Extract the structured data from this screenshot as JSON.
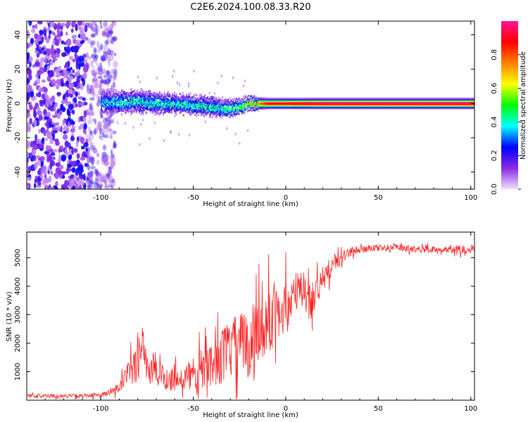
{
  "figure": {
    "title": "C2E6.2024.100.08.33.R20"
  },
  "chart_data": [
    {
      "type": "heatmap",
      "name": "spectrogram",
      "xlabel": "Height of straight line (km)",
      "ylabel": "Frequency (Hz)",
      "xlim": [
        -140,
        102
      ],
      "ylim": [
        -50,
        48
      ],
      "xticks": [
        -100,
        -50,
        0,
        50,
        100
      ],
      "yticks": [
        -40,
        -20,
        0,
        20,
        40
      ],
      "colorbar": {
        "label": "Normalized spectral amplitude",
        "range": [
          0,
          1
        ],
        "ticks": [
          0.0,
          0.2,
          0.4,
          0.6,
          0.8
        ],
        "colormap": [
          "#f0e0ff",
          "#8a2be2",
          "#0000ff",
          "#00ffff",
          "#00ff00",
          "#ffff00",
          "#ff8000",
          "#ff0000",
          "#ff1493"
        ]
      },
      "description_points": {
        "noise_region_x": [
          -140,
          -100
        ],
        "signal_start_x": -100,
        "tone_frequency_hz": 0,
        "tone_band_hz_by_x": {
          "x": [
            -100,
            -80,
            -60,
            -40,
            -30,
            -20,
            -10,
            0,
            10,
            20,
            50,
            100
          ],
          "halfwidth": [
            6,
            6,
            5,
            5,
            4,
            3,
            2,
            2,
            2,
            2,
            2,
            2
          ],
          "center": [
            1,
            1,
            0,
            -2,
            -3,
            0,
            0,
            0,
            0,
            0,
            0,
            0
          ],
          "peak_amplitude": [
            0.35,
            0.4,
            0.4,
            0.4,
            0.45,
            0.6,
            0.9,
            0.9,
            0.95,
            1.0,
            1.0,
            1.0
          ]
        }
      }
    },
    {
      "type": "line",
      "name": "snr",
      "xlabel": "Height of straight line (km)",
      "ylabel": "SNR (10 * v/v)",
      "xlim": [
        -140,
        102
      ],
      "ylim": [
        0,
        5900
      ],
      "xticks": [
        -100,
        -50,
        0,
        50,
        100
      ],
      "yticks": [
        1000,
        2000,
        3000,
        4000,
        5000
      ],
      "color": "#ff2020",
      "series": [
        {
          "x": [
            -140,
            -120,
            -105,
            -100,
            -95,
            -90,
            -85,
            -80,
            -78,
            -76,
            -75,
            -72,
            -70,
            -65,
            -60,
            -55,
            -50,
            -45,
            -40,
            -35,
            -30,
            -25,
            -20,
            -17,
            -15,
            -12,
            -10,
            -5,
            0,
            5,
            10,
            13,
            15,
            20,
            25,
            30,
            35,
            40,
            45,
            50,
            60,
            70,
            80,
            90,
            95,
            100,
            102
          ],
          "values": [
            150,
            150,
            160,
            180,
            250,
            450,
            900,
            1300,
            2300,
            1700,
            1100,
            1000,
            900,
            800,
            750,
            800,
            900,
            1100,
            1300,
            1500,
            1800,
            1900,
            2000,
            2200,
            2600,
            2400,
            2800,
            3000,
            3300,
            3700,
            3900,
            3400,
            3700,
            4200,
            4700,
            5000,
            5200,
            5300,
            5300,
            5350,
            5350,
            5300,
            5300,
            5300,
            5300,
            5350,
            5300
          ],
          "spread": [
            80,
            80,
            80,
            100,
            150,
            300,
            600,
            900,
            1200,
            1000,
            800,
            700,
            600,
            600,
            600,
            700,
            800,
            900,
            1000,
            1200,
            1300,
            1500,
            1600,
            1600,
            1700,
            1600,
            1500,
            1300,
            1200,
            1000,
            900,
            900,
            800,
            600,
            400,
            300,
            200,
            150,
            150,
            150,
            150,
            150,
            150,
            150,
            200,
            250,
            200
          ]
        }
      ]
    }
  ]
}
